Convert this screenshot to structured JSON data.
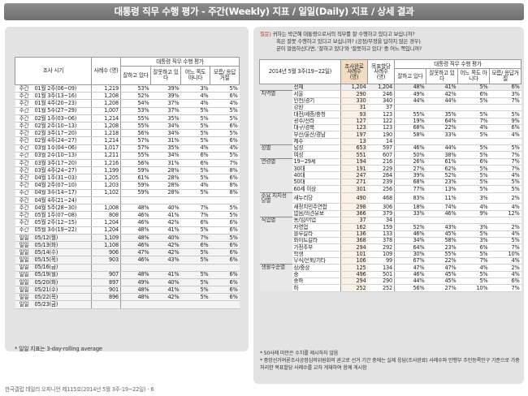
{
  "title": "대통령 직무 수행 평가 - 주간(Weekly) 지표 / 일일(Daily) 지표 / 상세 결과",
  "left": {
    "headers": {
      "period": "조사 시기",
      "n": "사례수 (명)",
      "group": "대통령 직무 수행 평가",
      "good": "잘하고 있다",
      "bad": "잘못하고 있다",
      "neither": "어느 쪽도 아니다",
      "dk": "모름/ 응답거절"
    },
    "rows": [
      {
        "t": "주간",
        "p": "01월 2주(06~09)",
        "n": "1,219",
        "g": "53%",
        "b": "39%",
        "e": "3%",
        "d": "5%",
        "k": "wk"
      },
      {
        "t": "주간",
        "p": "01월 3주(13~16)",
        "n": "1,208",
        "g": "52%",
        "b": "39%",
        "e": "4%",
        "d": "6%",
        "k": "wk"
      },
      {
        "t": "주간",
        "p": "01월 4주(20~23)",
        "n": "1,208",
        "g": "54%",
        "b": "37%",
        "e": "4%",
        "d": "4%",
        "k": "wk"
      },
      {
        "t": "주간",
        "p": "01월 5주(27~29)",
        "n": "1,007",
        "g": "53%",
        "b": "37%",
        "e": "5%",
        "d": "5%",
        "k": "wk"
      },
      {
        "t": "주간",
        "p": "02월 1주(03~06)",
        "n": "1,214",
        "g": "55%",
        "b": "35%",
        "e": "5%",
        "d": "5%",
        "k": "wk"
      },
      {
        "t": "주간",
        "p": "02월 2주(10~13)",
        "n": "1,208",
        "g": "55%",
        "b": "34%",
        "e": "5%",
        "d": "6%",
        "k": "wk"
      },
      {
        "t": "주간",
        "p": "02월 3주(17~20)",
        "n": "1,218",
        "g": "56%",
        "b": "34%",
        "e": "5%",
        "d": "5%",
        "k": "wk"
      },
      {
        "t": "주간",
        "p": "02월 4주(24~27)",
        "n": "1,214",
        "g": "57%",
        "b": "31%",
        "e": "5%",
        "d": "6%",
        "k": "wk"
      },
      {
        "t": "주간",
        "p": "03월 1주(04~06)",
        "n": "1,017",
        "g": "57%",
        "b": "35%",
        "e": "4%",
        "d": "4%",
        "k": "wk"
      },
      {
        "t": "주간",
        "p": "03월 2주(10~13)",
        "n": "1,211",
        "g": "55%",
        "b": "34%",
        "e": "6%",
        "d": "5%",
        "k": "wk"
      },
      {
        "t": "주간",
        "p": "03월 3주(17~20)",
        "n": "1,216",
        "g": "56%",
        "b": "31%",
        "e": "6%",
        "d": "7%",
        "k": "wk"
      },
      {
        "t": "주간",
        "p": "03월 4주(24~27)",
        "n": "1,199",
        "g": "59%",
        "b": "28%",
        "e": "5%",
        "d": "8%",
        "k": "wk"
      },
      {
        "t": "주간",
        "p": "04월 1주(31~03)",
        "n": "1,205",
        "g": "61%",
        "b": "28%",
        "e": "5%",
        "d": "6%",
        "k": "wk"
      },
      {
        "t": "주간",
        "p": "04월 2주(07~10)",
        "n": "1,203",
        "g": "59%",
        "b": "28%",
        "e": "4%",
        "d": "8%",
        "k": "wk"
      },
      {
        "t": "주간",
        "p": "04월 3주(14~17)",
        "n": "1,102",
        "g": "59%",
        "b": "28%",
        "e": "5%",
        "d": "8%",
        "k": "wk"
      },
      {
        "t": "주간",
        "p": "04월 4주(21~24)",
        "n": "",
        "g": "",
        "b": "",
        "e": "",
        "d": "",
        "k": "wk"
      },
      {
        "t": "주간",
        "p": "04월 5주(28~30)",
        "n": "1,008",
        "g": "48%",
        "b": "40%",
        "e": "7%",
        "d": "5%",
        "k": "wk"
      },
      {
        "t": "주간",
        "p": "05월 1주(07~08)",
        "n": "808",
        "g": "46%",
        "b": "41%",
        "e": "7%",
        "d": "5%",
        "k": "wk"
      },
      {
        "t": "주간",
        "p": "05월 2주(12~15)",
        "n": "1,204",
        "g": "46%",
        "b": "42%",
        "e": "6%",
        "d": "6%",
        "k": "wk"
      },
      {
        "t": "주간",
        "p": "05월 3주(19~22)",
        "n": "1,204",
        "g": "48%",
        "b": "41%",
        "e": "5%",
        "d": "6%",
        "k": "wk"
      },
      {
        "t": "일일",
        "p": "05/12(월)",
        "n": "1,109",
        "g": "48%",
        "b": "40%",
        "e": "7%",
        "d": "5%",
        "k": "dy",
        "s": true
      },
      {
        "t": "일일",
        "p": "05/13(화)",
        "n": "1,108",
        "g": "46%",
        "b": "42%",
        "e": "6%",
        "d": "6%",
        "k": "dy"
      },
      {
        "t": "일일",
        "p": "05/14(수)",
        "n": "906",
        "g": "47%",
        "b": "42%",
        "e": "5%",
        "d": "6%",
        "k": "dy"
      },
      {
        "t": "일일",
        "p": "05/15(목)",
        "n": "903",
        "g": "46%",
        "b": "43%",
        "e": "5%",
        "d": "6%",
        "k": "dy"
      },
      {
        "t": "일일",
        "p": "05/16(금)",
        "n": "",
        "g": "",
        "b": "",
        "e": "",
        "d": "",
        "k": "dy"
      },
      {
        "t": "일일",
        "p": "05/19(월)",
        "n": "907",
        "g": "48%",
        "b": "41%",
        "e": "5%",
        "d": "6%",
        "k": "dy",
        "s": true
      },
      {
        "t": "일일",
        "p": "05/20(화)",
        "n": "897",
        "g": "49%",
        "b": "40%",
        "e": "5%",
        "d": "6%",
        "k": "dy"
      },
      {
        "t": "일일",
        "p": "05/21(수)",
        "n": "901",
        "g": "48%",
        "b": "41%",
        "e": "5%",
        "d": "6%",
        "k": "dy"
      },
      {
        "t": "일일",
        "p": "05/22(목)",
        "n": "896",
        "g": "48%",
        "b": "42%",
        "e": "5%",
        "d": "6%",
        "k": "dy"
      },
      {
        "t": "일일",
        "p": "05/23(금)",
        "n": "",
        "g": "",
        "b": "",
        "e": "",
        "d": "",
        "k": "dy"
      }
    ],
    "footnote": "* 일일 지표는 3-day-rolling average"
  },
  "right": {
    "question": {
      "label": "질문)",
      "line1": "귀하는 박근혜 대통령으로서의 직무를 잘 수행하고 있다고 보십니까?",
      "line2": "혹은 잘못 수행하고 있다고 보십니까? (공정/부정을 답하지 않은 경우)",
      "line3": "굳이 말씀하신다면, '잘하고 있다'와 '잘못하고 있다' 중 어느 쪽입니까?"
    },
    "headers": {
      "period": "2014년 5월 3주(19~22일)",
      "n_done": "조사완료 사례수 (명)",
      "n_target": "목표할당 사례수 (명)",
      "group": "대통령 직무 수행 평가",
      "good": "잘하고 있다",
      "bad": "잘못하고 있다",
      "neither": "어느 쪽도 아니다",
      "dk": "모름/ 응답거절"
    },
    "rows": [
      {
        "grp": "",
        "sub": "전체",
        "n1": "1,204",
        "n2": "1,204",
        "g": "48%",
        "b": "41%",
        "e": "5%",
        "d": "6%",
        "total": true
      },
      {
        "grp": "지역별",
        "sub": "서울",
        "n1": "290",
        "n2": "246",
        "g": "49%",
        "b": "42%",
        "e": "6%",
        "d": "3%",
        "s": true
      },
      {
        "grp": "",
        "sub": "인천/경기",
        "n1": "330",
        "n2": "340",
        "g": "44%",
        "b": "44%",
        "e": "5%",
        "d": "7%"
      },
      {
        "grp": "",
        "sub": "강원",
        "n1": "31",
        "n2": "37",
        "g": "",
        "b": "",
        "e": "",
        "d": ""
      },
      {
        "grp": "",
        "sub": "대전/세종/충청",
        "n1": "93",
        "n2": "123",
        "g": "55%",
        "b": "35%",
        "e": "5%",
        "d": "5%"
      },
      {
        "grp": "",
        "sub": "광주/전라",
        "n1": "127",
        "n2": "122",
        "g": "19%",
        "b": "64%",
        "e": "7%",
        "d": "9%"
      },
      {
        "grp": "",
        "sub": "대구/경북",
        "n1": "123",
        "n2": "123",
        "g": "68%",
        "b": "22%",
        "e": "4%",
        "d": "6%"
      },
      {
        "grp": "",
        "sub": "부산/울산/경남",
        "n1": "197",
        "n2": "190",
        "g": "58%",
        "b": "33%",
        "e": "5%",
        "d": "4%"
      },
      {
        "grp": "",
        "sub": "제주",
        "n1": "13",
        "n2": "14",
        "g": "",
        "b": "",
        "e": "",
        "d": ""
      },
      {
        "grp": "성별",
        "sub": "남성",
        "n1": "653",
        "n2": "597",
        "g": "46%",
        "b": "44%",
        "e": "5%",
        "d": "5%",
        "s": true
      },
      {
        "grp": "",
        "sub": "여성",
        "n1": "551",
        "n2": "607",
        "g": "50%",
        "b": "38%",
        "e": "5%",
        "d": "7%"
      },
      {
        "grp": "연령별",
        "sub": "19~29세",
        "n1": "194",
        "n2": "216",
        "g": "26%",
        "b": "61%",
        "e": "6%",
        "d": "7%",
        "s": true
      },
      {
        "grp": "",
        "sub": "30대",
        "n1": "191",
        "n2": "229",
        "g": "27%",
        "b": "62%",
        "e": "5%",
        "d": "7%"
      },
      {
        "grp": "",
        "sub": "40대",
        "n1": "247",
        "n2": "264",
        "g": "39%",
        "b": "52%",
        "e": "5%",
        "d": "4%"
      },
      {
        "grp": "",
        "sub": "50대",
        "n1": "271",
        "n2": "239",
        "g": "68%",
        "b": "23%",
        "e": "5%",
        "d": "5%"
      },
      {
        "grp": "",
        "sub": "60세 이상",
        "n1": "301",
        "n2": "256",
        "g": "77%",
        "b": "13%",
        "e": "5%",
        "d": "5%"
      },
      {
        "grp": "주요 지지정당별",
        "sub": "새누리당",
        "n1": "490",
        "n2": "468",
        "g": "83%",
        "b": "11%",
        "e": "3%",
        "d": "2%",
        "s": true
      },
      {
        "grp": "",
        "sub": "새정치민주연합",
        "n1": "298",
        "n2": "306",
        "g": "18%",
        "b": "74%",
        "e": "4%",
        "d": "4%"
      },
      {
        "grp": "",
        "sub": "없음/의견유보",
        "n1": "366",
        "n2": "379",
        "g": "33%",
        "b": "46%",
        "e": "9%",
        "d": "12%"
      },
      {
        "grp": "직업별",
        "sub": "농/임/어업",
        "n1": "37",
        "n2": "34",
        "g": "",
        "b": "",
        "e": "",
        "d": "",
        "s": true
      },
      {
        "grp": "",
        "sub": "자영업",
        "n1": "162",
        "n2": "159",
        "g": "52%",
        "b": "43%",
        "e": "3%",
        "d": "2%"
      },
      {
        "grp": "",
        "sub": "블루칼라",
        "n1": "136",
        "n2": "133",
        "g": "46%",
        "b": "45%",
        "e": "5%",
        "d": "4%"
      },
      {
        "grp": "",
        "sub": "화이트칼라",
        "n1": "368",
        "n2": "378",
        "g": "34%",
        "b": "58%",
        "e": "3%",
        "d": "5%"
      },
      {
        "grp": "",
        "sub": "가정주부",
        "n1": "294",
        "n2": "292",
        "g": "64%",
        "b": "23%",
        "e": "6%",
        "d": "7%"
      },
      {
        "grp": "",
        "sub": "학생",
        "n1": "101",
        "n2": "109",
        "g": "30%",
        "b": "55%",
        "e": "5%",
        "d": "10%"
      },
      {
        "grp": "",
        "sub": "무직/은퇴/기타",
        "n1": "106",
        "n2": "99",
        "g": "67%",
        "b": "22%",
        "e": "7%",
        "d": "4%"
      },
      {
        "grp": "생활수준별",
        "sub": "상/중상",
        "n1": "125",
        "n2": "134",
        "g": "47%",
        "b": "47%",
        "e": "4%",
        "d": "2%",
        "s": true
      },
      {
        "grp": "",
        "sub": "중",
        "n1": "496",
        "n2": "501",
        "g": "46%",
        "b": "45%",
        "e": "5%",
        "d": "4%"
      },
      {
        "grp": "",
        "sub": "중하",
        "n1": "294",
        "n2": "290",
        "g": "44%",
        "b": "45%",
        "e": "5%",
        "d": "6%"
      },
      {
        "grp": "",
        "sub": "하",
        "n1": "252",
        "n2": "252",
        "g": "56%",
        "b": "27%",
        "e": "10%",
        "d": "7%"
      }
    ],
    "note1": "* 50사례 미만은 수치를 제시하지 않음",
    "note2": "* 중앙선거여론조사공정심의위원회의 권고로 선거 기간 중에는 실제 응답(조사완료) 사례수와 안행부 주민등록인구 기준으로 가중 처리한 목표할당 사례수를 교차 게재하여 함께 게시함"
  },
  "footer": "한국갤럽 데일리 오피니언 제115호(2014년 5월 3주-19~22일) - 6"
}
